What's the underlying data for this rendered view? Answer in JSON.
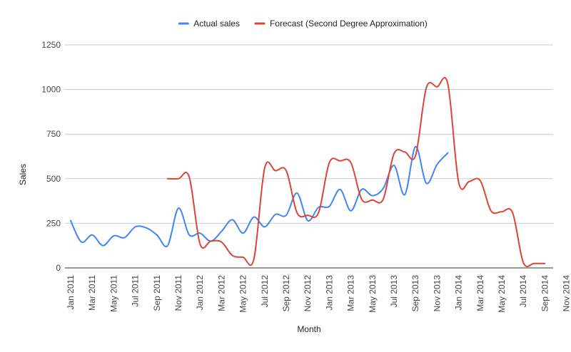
{
  "chart_data": {
    "type": "line",
    "title": "",
    "xlabel": "Month",
    "ylabel": "Sales",
    "ylim": [
      0,
      1250
    ],
    "yticks": [
      0,
      250,
      500,
      750,
      1000,
      1250
    ],
    "grid": true,
    "legend_position": "top",
    "x": [
      "Jan 2011",
      "Feb 2011",
      "Mar 2011",
      "Apr 2011",
      "May 2011",
      "Jun 2011",
      "Jul 2011",
      "Aug 2011",
      "Sep 2011",
      "Oct 2011",
      "Nov 2011",
      "Dec 2011",
      "Jan 2012",
      "Feb 2012",
      "Mar 2012",
      "Apr 2012",
      "May 2012",
      "Jun 2012",
      "Jul 2012",
      "Aug 2012",
      "Sep 2012",
      "Oct 2012",
      "Nov 2012",
      "Dec 2012",
      "Jan 2013",
      "Feb 2013",
      "Mar 2013",
      "Apr 2013",
      "May 2013",
      "Jun 2013",
      "Jul 2013",
      "Aug 2013",
      "Sep 2013",
      "Oct 2013",
      "Nov 2013",
      "Dec 2013",
      "Jan 2014",
      "Feb 2014",
      "Mar 2014",
      "Apr 2014",
      "May 2014",
      "Jun 2014",
      "Jul 2014",
      "Aug 2014",
      "Sep 2014",
      "Oct 2014",
      "Nov 2014"
    ],
    "x_tick_labels": [
      "Jan 2011",
      "Mar 2011",
      "May 2011",
      "Jul 2011",
      "Sep 2011",
      "Nov 2011",
      "Jan 2012",
      "Mar 2012",
      "May 2012",
      "Jul 2012",
      "Sep 2012",
      "Nov 2012",
      "Jan 2013",
      "Mar 2013",
      "May 2013",
      "Jul 2013",
      "Sep 2013",
      "Nov 2013",
      "Jan 2014",
      "Mar 2014",
      "May 2014",
      "Jul 2014",
      "Sep 2014",
      "Nov 2014"
    ],
    "series": [
      {
        "name": "Actual sales",
        "color": "#4285f4",
        "values": [
          265,
          145,
          185,
          125,
          180,
          170,
          230,
          225,
          185,
          125,
          335,
          185,
          195,
          150,
          205,
          270,
          195,
          285,
          230,
          300,
          295,
          420,
          265,
          340,
          345,
          440,
          320,
          440,
          405,
          445,
          575,
          410,
          680,
          475,
          580,
          645,
          null,
          null,
          null,
          null,
          null,
          null,
          null,
          null,
          null,
          null,
          null
        ]
      },
      {
        "name": "Forecast (Second Degree Approximation)",
        "color": "#db4437",
        "values": [
          null,
          null,
          null,
          null,
          null,
          null,
          null,
          null,
          null,
          500,
          500,
          510,
          135,
          150,
          145,
          70,
          60,
          50,
          560,
          545,
          545,
          310,
          295,
          310,
          590,
          600,
          590,
          385,
          380,
          385,
          640,
          650,
          630,
          1010,
          1015,
          1030,
          480,
          485,
          490,
          320,
          315,
          310,
          30,
          25,
          25,
          null,
          null
        ]
      }
    ]
  }
}
